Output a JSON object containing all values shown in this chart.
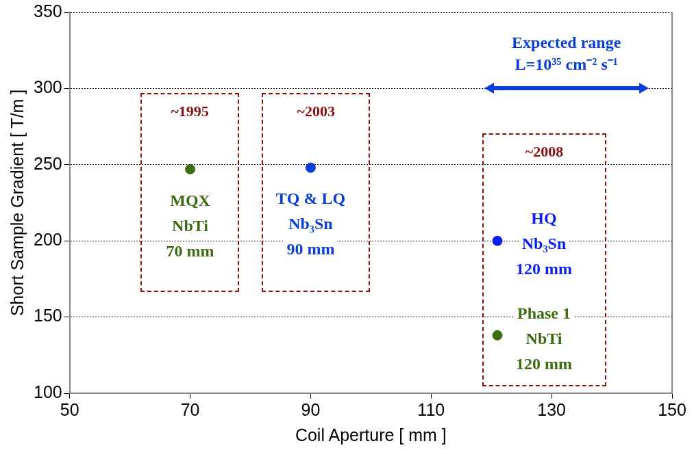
{
  "chart_data": {
    "type": "scatter",
    "xlabel": "Coil Aperture [ mm ]",
    "ylabel": "Short Sample Gradient [ T/m ]",
    "xlim": [
      50,
      150
    ],
    "xticks": [
      50,
      70,
      90,
      110,
      130,
      150
    ],
    "ylim": [
      100,
      350
    ],
    "yticks": [
      100,
      150,
      200,
      250,
      300,
      350
    ],
    "grid": "y",
    "marker": "circle",
    "series": [
      {
        "name": "MQX\nNbTi\n70 mm",
        "color": "#3d6b12",
        "x": [
          70
        ],
        "values": [
          247
        ]
      },
      {
        "name": "TQ & LQ\nNb₃Sn\n90 mm",
        "color": "#0a3fd6",
        "x": [
          90
        ],
        "values": [
          248
        ]
      },
      {
        "name": "HQ\nNb₃Sn\n120 mm",
        "color": "#0a1ff0",
        "x": [
          121
        ],
        "values": [
          200
        ]
      },
      {
        "name": "Phase 1\nNbTi\n120 mm",
        "color": "#3d6b12",
        "x": [
          121
        ],
        "values": [
          138
        ]
      }
    ],
    "annotations": [
      "~1995",
      "~2003",
      "~2008",
      "Expected range\nL=10³⁵ cm⁻² s⁻¹"
    ]
  }
}
